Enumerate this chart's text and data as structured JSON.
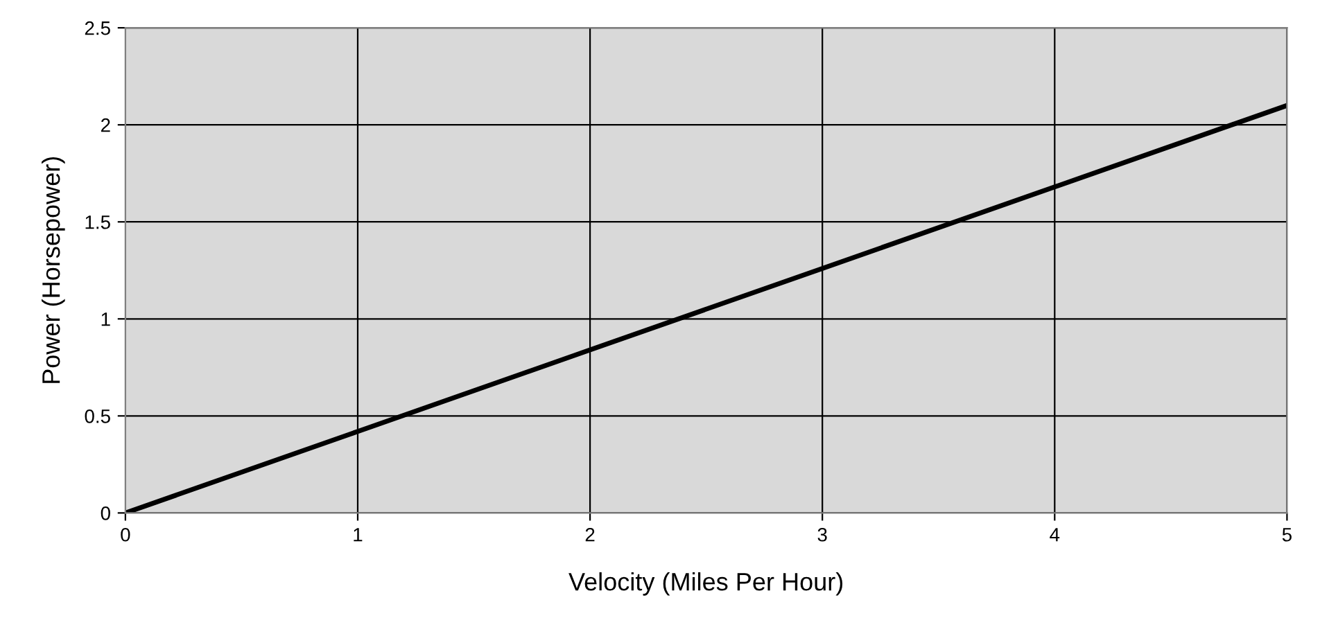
{
  "chart_data": {
    "type": "line",
    "xlabel": "Velocity (Miles Per Hour)",
    "ylabel": "Power (Horsepower)",
    "x": [
      0,
      1,
      2,
      3,
      4,
      5
    ],
    "series": [
      {
        "color": "#000000",
        "values": [
          0,
          0.42,
          0.84,
          1.26,
          1.68,
          2.1
        ]
      }
    ],
    "xlim": [
      0,
      5
    ],
    "ylim": [
      0,
      2.5
    ],
    "xticks": [
      0,
      1,
      2,
      3,
      4,
      5
    ],
    "yticks": [
      0,
      0.5,
      1,
      1.5,
      2,
      2.5
    ],
    "grid": true,
    "marker": "none",
    "line_style": "solid",
    "legend": false
  }
}
